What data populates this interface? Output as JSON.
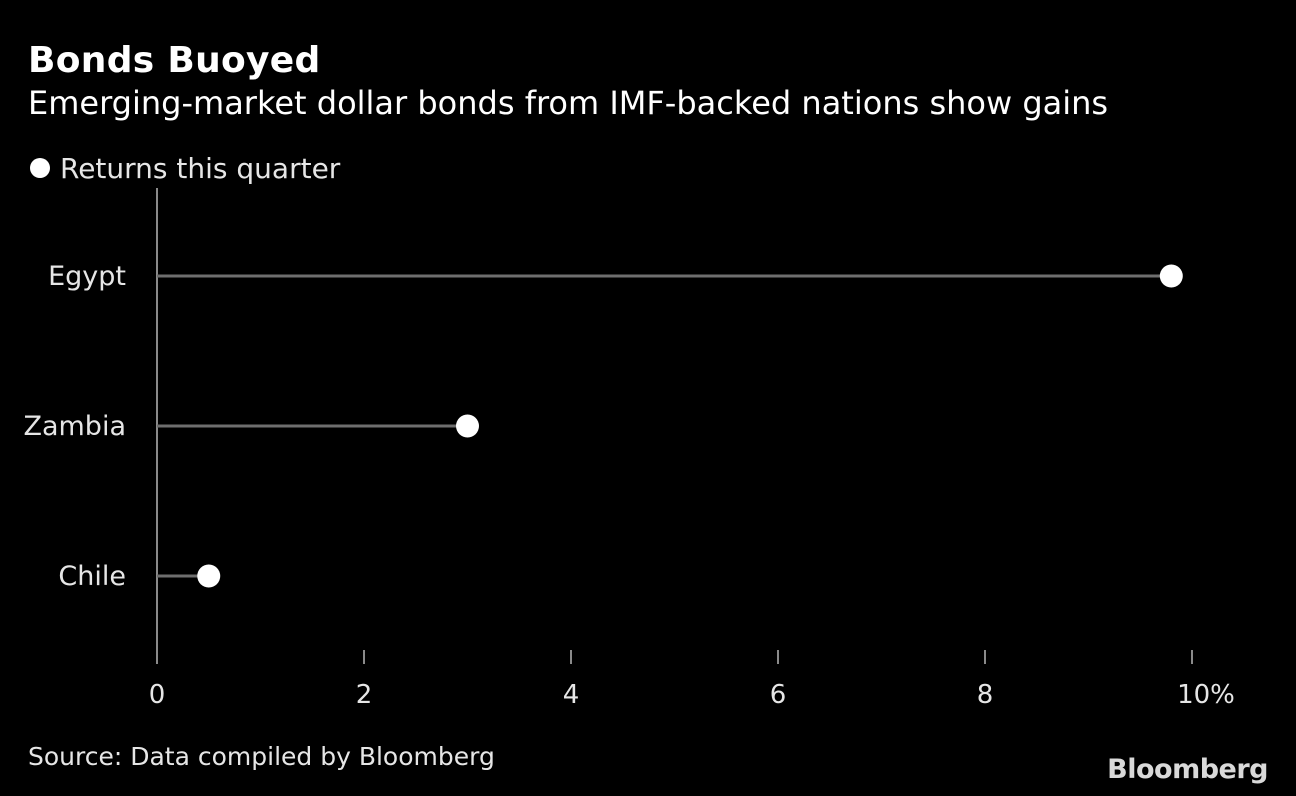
{
  "title": "Bonds Buoyed",
  "subtitle": "Emerging-market dollar bonds from IMF-backed nations show gains",
  "source": "Source: Data compiled by Bloomberg",
  "logo": "Bloomberg",
  "colors": {
    "background": "#000000",
    "marker": "#ffffff",
    "stem": "#6e6e6e",
    "axis": "#8a8a8a",
    "text": "#e6e6e6"
  },
  "chart_data": {
    "type": "lollipop",
    "orientation": "horizontal",
    "categories": [
      "Egypt",
      "Zambia",
      "Chile"
    ],
    "series": [
      {
        "name": "Returns this quarter",
        "values": [
          9.8,
          3.0,
          0.5
        ]
      }
    ],
    "xlim": [
      0,
      10
    ],
    "x_ticks": [
      0,
      2,
      4,
      6,
      8,
      10
    ],
    "x_tick_labels": [
      "0",
      "2",
      "4",
      "6",
      "8",
      "10%"
    ],
    "legend_position": "top-left",
    "grid": false
  }
}
